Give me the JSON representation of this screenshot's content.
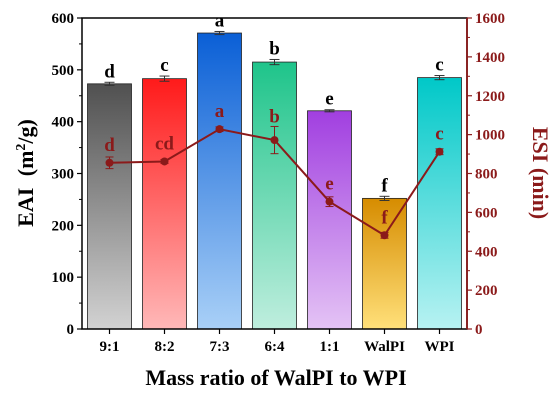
{
  "chart_data": {
    "type": "bar",
    "categories": [
      "9:1",
      "8:2",
      "7:3",
      "6:4",
      "1:1",
      "WalPI",
      "WPI"
    ],
    "xlabel": "Mass ratio of WalPI to WPI",
    "ylabel": "EAI",
    "ylabel_unit": "(m",
    "ylabel_sup": "2",
    "ylabel_tail": "/g)",
    "ylabel_right": "ESI (min)",
    "ylim": [
      0,
      600
    ],
    "yticks": [
      0,
      100,
      200,
      300,
      400,
      500,
      600
    ],
    "ylim_right": [
      0,
      1600
    ],
    "yticks_right": [
      0,
      200,
      400,
      600,
      800,
      1000,
      1200,
      1400,
      1600
    ],
    "grid": false,
    "series": [
      {
        "axis": "left",
        "kind": "bar",
        "values": [
          473,
          483,
          571,
          515,
          421,
          252,
          485
        ],
        "errors": [
          3,
          5,
          3,
          5,
          2,
          4,
          4
        ],
        "letters": [
          "d",
          "c",
          "a",
          "b",
          "e",
          "f",
          "c"
        ],
        "colors": [
          [
            "#505050",
            "#d2d2d2"
          ],
          [
            "#ff1a1a",
            "#ffb8b8"
          ],
          [
            "#0a5fd6",
            "#a9d0f7"
          ],
          [
            "#1ec48a",
            "#bfeede"
          ],
          [
            "#a13fe0",
            "#e4c3f5"
          ],
          [
            "#d68c00",
            "#ffe07a"
          ],
          [
            "#00c8c8",
            "#b7f2f2"
          ]
        ]
      },
      {
        "axis": "right",
        "kind": "line",
        "values": [
          855,
          862,
          1028,
          972,
          655,
          482,
          912
        ],
        "errors": [
          30,
          10,
          12,
          70,
          25,
          15,
          15
        ],
        "letters": [
          "d",
          "cd",
          "a",
          "b",
          "e",
          "f",
          "c"
        ],
        "color": "#8B1A1A"
      }
    ]
  }
}
